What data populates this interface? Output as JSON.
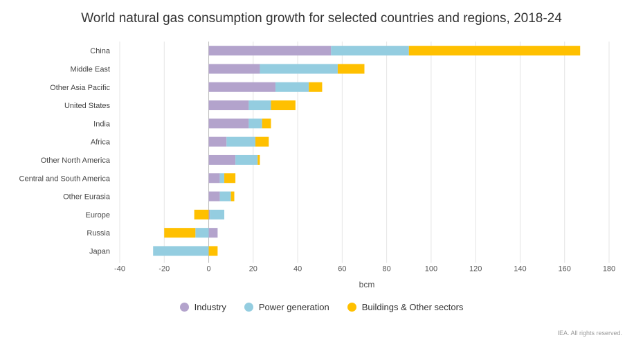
{
  "chart_data": {
    "type": "bar",
    "orientation": "horizontal",
    "stacked": true,
    "title": "World natural gas consumption growth for selected countries and regions, 2018-24",
    "xlabel": "bcm",
    "ylabel": "",
    "xlim": [
      -40,
      180
    ],
    "xticks": [
      -40,
      -20,
      0,
      20,
      40,
      60,
      80,
      100,
      120,
      140,
      160,
      180
    ],
    "grid": true,
    "legend_position": "bottom",
    "categories": [
      "China",
      "Middle East",
      "Other Asia Pacific",
      "United States",
      "India",
      "Africa",
      "Other North America",
      "Central and South America",
      "Other Eurasia",
      "Europe",
      "Russia",
      "Japan"
    ],
    "series": [
      {
        "name": "Industry",
        "color": "#b3a3cc",
        "values": [
          55,
          23,
          30,
          18,
          18,
          8,
          12,
          5,
          5,
          0.5,
          4,
          0
        ]
      },
      {
        "name": "Power generation",
        "color": "#94cde0",
        "values": [
          35,
          35,
          15,
          10,
          6,
          13,
          10,
          2,
          5,
          6.5,
          -6,
          -25
        ]
      },
      {
        "name": "Buildings & Other sectors",
        "color": "#ffc000",
        "values": [
          77,
          12,
          6,
          11,
          4,
          6,
          1,
          5,
          1.5,
          -6.5,
          -14,
          4
        ]
      }
    ]
  },
  "footnote": "IEA. All rights reserved."
}
